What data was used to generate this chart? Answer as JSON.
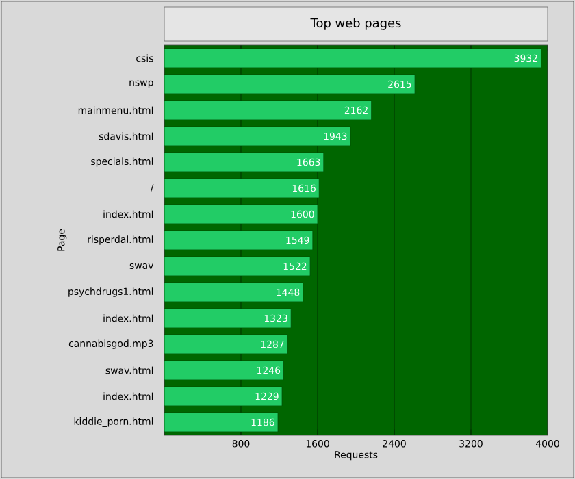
{
  "chart_data": {
    "type": "bar",
    "orientation": "horizontal",
    "title": "Top web pages",
    "xlabel": "Requests",
    "ylabel": "Page",
    "categories": [
      "csis",
      "nswp",
      "mainmenu.html",
      "sdavis.html",
      "specials.html",
      "/",
      "index.html",
      "risperdal.html",
      "swav",
      "psychdrugs1.html",
      "index.html",
      "cannabisgod.mp3",
      "swav.html",
      "index.html",
      "kiddie_porn.html"
    ],
    "values": [
      3932,
      2615,
      2162,
      1943,
      1663,
      1616,
      1600,
      1549,
      1522,
      1448,
      1323,
      1287,
      1246,
      1229,
      1186
    ],
    "color": "#22cc66",
    "data_labels": true,
    "grid": "x",
    "xlim": [
      0,
      4000
    ],
    "xticks": [
      {
        "value": 0,
        "label": null
      },
      800,
      1600,
      2400,
      3200,
      4000
    ]
  }
}
